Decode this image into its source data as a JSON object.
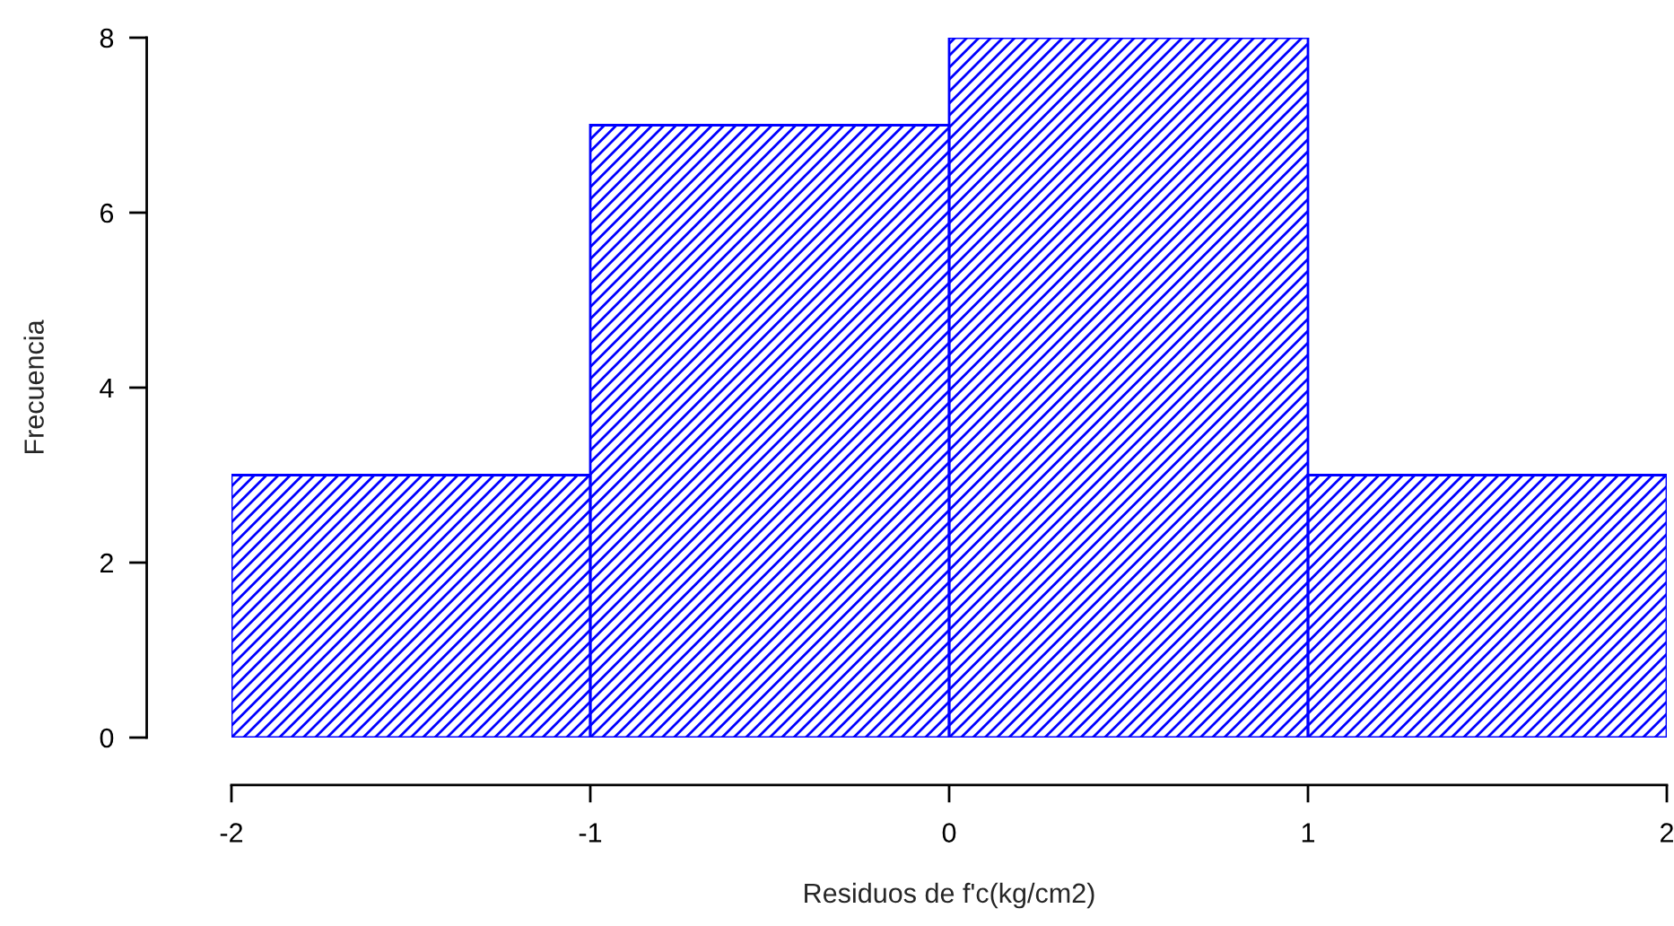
{
  "chart_data": {
    "type": "histogram",
    "xlabel": "Residuos de f'c(kg/cm2)",
    "ylabel": "Frecuencia",
    "bins": [
      -2,
      -1,
      0,
      1,
      2
    ],
    "values": [
      3,
      7,
      8,
      3
    ],
    "color": "#0000ff",
    "xlim": [
      -2,
      2
    ],
    "ylim": [
      0,
      8
    ],
    "xticks": [
      -2,
      -1,
      0,
      1,
      2
    ],
    "yticks": [
      0,
      2,
      4,
      6,
      8
    ],
    "grid": false
  }
}
